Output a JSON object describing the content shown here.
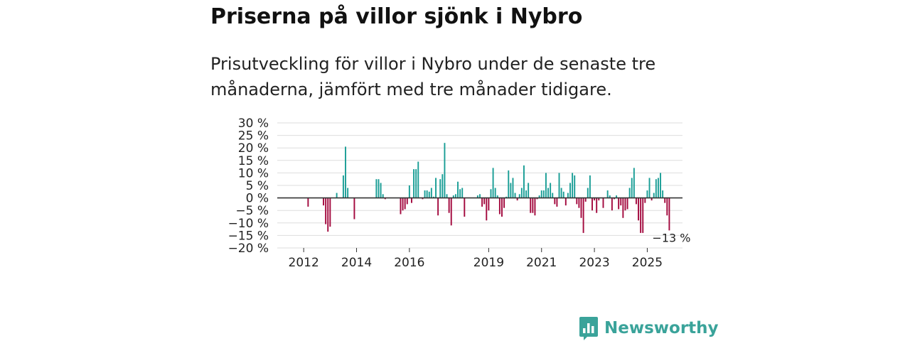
{
  "title": "Priserna på villor sjönk i Nybro",
  "subtitle": "Prisutveckling för villor i Nybro under de senaste tre månaderna, jämfört med tre månader tidigare.",
  "brand": {
    "name": "Newsworthy",
    "icon": "newsworthy-logo-icon"
  },
  "colors": {
    "positive": "#1a9e96",
    "negative": "#a3093e",
    "grid": "#dddddd",
    "axis": "#333333",
    "text": "#222222",
    "brand": "#3aa39a"
  },
  "chart_data": {
    "type": "bar",
    "title": "Priserna på villor sjönk i Nybro",
    "xlabel": "",
    "ylabel": "",
    "unit": "%",
    "ylim": [
      -20,
      30
    ],
    "y_ticks": [
      30,
      25,
      20,
      15,
      10,
      5,
      0,
      -5,
      -10,
      -15,
      -20
    ],
    "y_tick_labels": [
      "30 %",
      "25 %",
      "20 %",
      "15 %",
      "10 %",
      "5 %",
      "0 %",
      "−5 %",
      "−10 %",
      "−15 %",
      "−20 %"
    ],
    "grid": true,
    "x_ticks": [
      {
        "label": "2012",
        "month": 12
      },
      {
        "label": "2014",
        "month": 36
      },
      {
        "label": "2016",
        "month": 60
      },
      {
        "label": "2019",
        "month": 96
      },
      {
        "label": "2021",
        "month": 120
      },
      {
        "label": "2023",
        "month": 144
      },
      {
        "label": "2025",
        "month": 168
      }
    ],
    "series": [
      {
        "name": "Prisutveckling",
        "start": "2011-01",
        "x_range_months": [
          0,
          184
        ],
        "points": [
          [
            14,
            -3.5
          ],
          [
            21,
            -3.0
          ],
          [
            22,
            -10.5
          ],
          [
            23,
            -13.5
          ],
          [
            24,
            -11.5
          ],
          [
            27,
            2.0
          ],
          [
            30,
            9.0
          ],
          [
            31,
            20.5
          ],
          [
            32,
            4.0
          ],
          [
            35,
            -8.5
          ],
          [
            45,
            7.5
          ],
          [
            46,
            7.5
          ],
          [
            47,
            6.0
          ],
          [
            48,
            1.5
          ],
          [
            49,
            -0.5
          ],
          [
            56,
            -6.5
          ],
          [
            57,
            -5.0
          ],
          [
            58,
            -4.5
          ],
          [
            59,
            -2.5
          ],
          [
            60,
            5.0
          ],
          [
            61,
            -2.0
          ],
          [
            62,
            11.5
          ],
          [
            63,
            11.5
          ],
          [
            64,
            14.5
          ],
          [
            66,
            -0.5
          ],
          [
            67,
            3.0
          ],
          [
            68,
            3.0
          ],
          [
            69,
            2.5
          ],
          [
            70,
            4.0
          ],
          [
            71,
            0.5
          ],
          [
            72,
            8.0
          ],
          [
            73,
            -7.0
          ],
          [
            74,
            7.5
          ],
          [
            75,
            9.5
          ],
          [
            76,
            22.0
          ],
          [
            77,
            1.5
          ],
          [
            78,
            -6.0
          ],
          [
            79,
            -11.0
          ],
          [
            80,
            1.0
          ],
          [
            81,
            1.5
          ],
          [
            82,
            6.5
          ],
          [
            83,
            3.5
          ],
          [
            84,
            4.0
          ],
          [
            85,
            -7.5
          ],
          [
            91,
            1.0
          ],
          [
            92,
            1.5
          ],
          [
            93,
            -3.5
          ],
          [
            94,
            -2.5
          ],
          [
            95,
            -9.0
          ],
          [
            96,
            -5.0
          ],
          [
            97,
            3.5
          ],
          [
            98,
            12.0
          ],
          [
            99,
            4.0
          ],
          [
            100,
            1.0
          ],
          [
            101,
            -6.5
          ],
          [
            102,
            -7.5
          ],
          [
            103,
            -4.0
          ],
          [
            104,
            0.5
          ],
          [
            105,
            11.0
          ],
          [
            106,
            6.0
          ],
          [
            107,
            8.0
          ],
          [
            108,
            2.0
          ],
          [
            109,
            -1.0
          ],
          [
            110,
            1.5
          ],
          [
            111,
            4.0
          ],
          [
            112,
            13.0
          ],
          [
            113,
            3.0
          ],
          [
            114,
            6.0
          ],
          [
            115,
            -6.0
          ],
          [
            116,
            -6.0
          ],
          [
            117,
            -7.0
          ],
          [
            118,
            -0.5
          ],
          [
            119,
            1.0
          ],
          [
            120,
            3.0
          ],
          [
            121,
            3.0
          ],
          [
            122,
            10.0
          ],
          [
            123,
            4.0
          ],
          [
            124,
            6.0
          ],
          [
            125,
            2.0
          ],
          [
            126,
            -2.5
          ],
          [
            127,
            -3.5
          ],
          [
            128,
            10.0
          ],
          [
            129,
            4.0
          ],
          [
            130,
            2.5
          ],
          [
            131,
            -3.0
          ],
          [
            132,
            2.0
          ],
          [
            133,
            6.0
          ],
          [
            134,
            10.0
          ],
          [
            135,
            9.0
          ],
          [
            136,
            -2.5
          ],
          [
            137,
            -4.0
          ],
          [
            138,
            -8.0
          ],
          [
            139,
            -14.0
          ],
          [
            140,
            -1.5
          ],
          [
            141,
            4.0
          ],
          [
            142,
            9.0
          ],
          [
            143,
            -5.0
          ],
          [
            144,
            -1.0
          ],
          [
            145,
            -6.0
          ],
          [
            146,
            -1.0
          ],
          [
            148,
            -4.0
          ],
          [
            150,
            3.0
          ],
          [
            151,
            1.0
          ],
          [
            152,
            -5.0
          ],
          [
            153,
            -0.5
          ],
          [
            154,
            1.0
          ],
          [
            155,
            -4.5
          ],
          [
            156,
            -3.0
          ],
          [
            157,
            -8.0
          ],
          [
            158,
            -5.0
          ],
          [
            159,
            -4.5
          ],
          [
            160,
            4.0
          ],
          [
            161,
            8.0
          ],
          [
            162,
            12.0
          ],
          [
            163,
            -2.5
          ],
          [
            164,
            -9.0
          ],
          [
            165,
            -14.0
          ],
          [
            166,
            -14.0
          ],
          [
            167,
            -2.0
          ],
          [
            168,
            3.0
          ],
          [
            169,
            8.0
          ],
          [
            170,
            -1.0
          ],
          [
            171,
            2.0
          ],
          [
            172,
            7.5
          ],
          [
            173,
            8.0
          ],
          [
            174,
            10.0
          ],
          [
            175,
            3.0
          ],
          [
            176,
            -2.0
          ],
          [
            177,
            -7.0
          ],
          [
            178,
            -13.0
          ]
        ]
      }
    ],
    "annotation": {
      "label": "−13 %",
      "month": 178,
      "value": -13
    }
  }
}
